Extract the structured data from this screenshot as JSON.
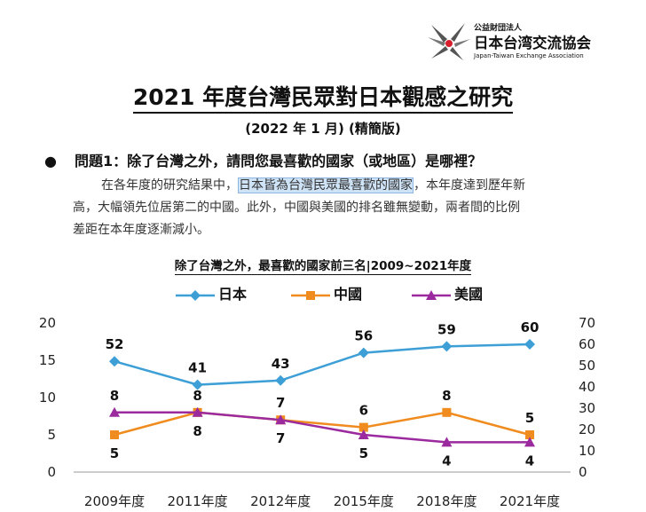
{
  "logo": {
    "org_small": "公益財団法人",
    "org_name": "日本台湾交流協会",
    "org_english": "Japan-Taiwan Exchange Association"
  },
  "report": {
    "title": "2021 年度台灣民眾對日本觀感之研究",
    "subtitle": "(2022 年 1 月) (精簡版)"
  },
  "question": {
    "bullet": "●",
    "text": "問題1：除了台灣之外，請問您最喜歡的國家（或地區）是哪裡？"
  },
  "paragraph": {
    "pre": "在各年度的研究結果中，",
    "highlight": "日本皆為台灣民眾最喜歡的國家",
    "post1": "，本年度達到歷年新",
    "line2": "高，大幅領先位居第二的中國。此外，中國與美國的排名雖無變動，兩者間的比例",
    "line3": "差距在本年度逐漸減小。"
  },
  "chart_data": {
    "type": "line",
    "title": "除了台灣之外，最喜歡的國家前三名|2009~2021年度",
    "categories": [
      "2009年度",
      "2011年度",
      "2012年度",
      "2015年度",
      "2018年度",
      "2021年度"
    ],
    "series": [
      {
        "name": "日本",
        "axis": "right",
        "color": "#3d9fd6",
        "marker": "diamond",
        "values": [
          52,
          41,
          43,
          56,
          59,
          60
        ]
      },
      {
        "name": "中國",
        "axis": "left",
        "color": "#f08c1f",
        "marker": "square",
        "values": [
          5,
          8,
          7,
          6,
          8,
          5
        ]
      },
      {
        "name": "美國",
        "axis": "left",
        "color": "#9b2a9e",
        "marker": "triangle",
        "values": [
          8,
          8,
          7,
          5,
          4,
          4
        ]
      }
    ],
    "y_left": {
      "min": 0,
      "max": 20,
      "ticks": [
        0,
        5,
        10,
        15,
        20
      ]
    },
    "y_right": {
      "min": 0,
      "max": 70,
      "ticks": [
        0,
        10,
        20,
        30,
        40,
        50,
        60,
        70
      ]
    },
    "grid": false,
    "legend_position": "top"
  }
}
